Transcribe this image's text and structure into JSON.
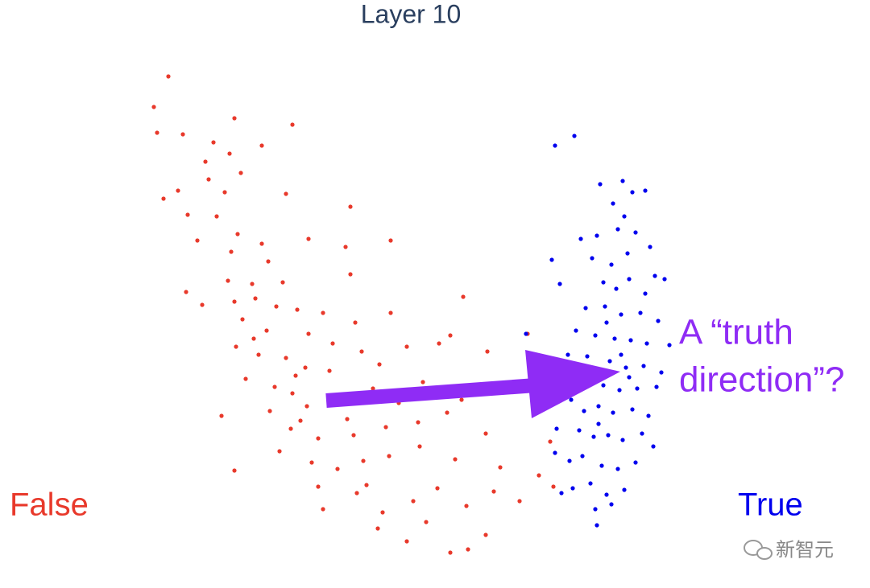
{
  "chart_data": {
    "type": "scatter",
    "title": "Layer 10",
    "annotation": [
      "A “truth",
      "direction”?"
    ],
    "watermark": "新智元",
    "xlim": [
      18,
      84
    ],
    "ylim": [
      3,
      65
    ],
    "series": [
      {
        "name": "False",
        "color": "#e8392b",
        "x": [
          20.9,
          19.1,
          19.5,
          22.7,
          29.1,
          36.3,
          32.5,
          26.5,
          28.5,
          25.5,
          29.9,
          25.9,
          22.1,
          20.3,
          27.9,
          35.5,
          43.5,
          26.9,
          23.3,
          29.5,
          24.5,
          32.5,
          38.3,
          42.9,
          48.5,
          28.7,
          33.3,
          43.5,
          28.3,
          31.3,
          35.1,
          29.1,
          23.1,
          25.1,
          31.7,
          34.3,
          36.9,
          57.5,
          40.1,
          44.1,
          48.5,
          30.1,
          33.1,
          38.3,
          41.3,
          44.9,
          50.5,
          55.9,
          65.5,
          29.3,
          32.1,
          35.5,
          37.9,
          40.9,
          47.1,
          54.5,
          60.5,
          30.5,
          34.1,
          36.3,
          38.1,
          42.5,
          46.3,
          52.5,
          57.3,
          63.5,
          27.5,
          33.5,
          36.1,
          39.5,
          43.9,
          47.9,
          51.9,
          55.5,
          60.3,
          68.3,
          34.7,
          38.7,
          41.9,
          45.1,
          48.3,
          52.1,
          56.5,
          62.1,
          66.9,
          29.1,
          39.5,
          44.3,
          47.5,
          51.3,
          54.3,
          57.9,
          61.3,
          64.5,
          68.7,
          40.1,
          46.9,
          50.5,
          55.9,
          58.1,
          60.3,
          52.9,
          36.7,
          31.5,
          43.1,
          49.5,
          37.3,
          45.5
        ],
        "y": [
          63.6,
          59.8,
          56.6,
          56.4,
          58.4,
          57.6,
          55.0,
          55.4,
          54.0,
          53.0,
          51.6,
          50.8,
          49.4,
          48.4,
          49.2,
          49.0,
          47.4,
          46.2,
          46.4,
          44.0,
          43.2,
          42.8,
          43.4,
          42.4,
          43.2,
          41.8,
          40.6,
          39.0,
          38.2,
          37.8,
          38.0,
          35.6,
          36.8,
          35.2,
          36.0,
          35.0,
          34.6,
          36.2,
          34.2,
          33.0,
          34.2,
          33.4,
          32.0,
          31.6,
          30.4,
          29.4,
          30.0,
          31.4,
          31.6,
          30.0,
          29.0,
          28.6,
          27.4,
          27.0,
          27.8,
          30.4,
          29.4,
          26.0,
          25.0,
          24.2,
          22.6,
          24.0,
          24.8,
          25.6,
          23.4,
          25.2,
          21.4,
          22.0,
          19.8,
          18.6,
          19.0,
          20.0,
          20.6,
          21.8,
          19.2,
          18.2,
          17.0,
          15.6,
          14.8,
          15.8,
          16.4,
          17.6,
          16.0,
          15.0,
          14.0,
          14.6,
          12.6,
          11.8,
          9.4,
          10.8,
          12.4,
          10.2,
          12.0,
          10.8,
          12.6,
          9.8,
          7.4,
          5.8,
          4.4,
          4.8,
          6.6,
          8.2,
          26.4,
          31.0,
          21.0,
          23.0,
          20.8,
          12.8
        ]
      },
      {
        "name": "True",
        "color": "#0000ee",
        "x": [
          68.9,
          71.3,
          74.5,
          77.3,
          78.5,
          80.1,
          76.1,
          77.5,
          72.1,
          74.1,
          76.7,
          78.9,
          80.7,
          68.5,
          73.5,
          75.9,
          77.9,
          81.3,
          82.5,
          69.5,
          74.9,
          76.5,
          78.1,
          80.1,
          72.7,
          75.1,
          77.1,
          79.5,
          81.7,
          65.3,
          71.5,
          73.9,
          76.3,
          78.3,
          80.3,
          83.1,
          70.5,
          72.9,
          75.7,
          77.7,
          79.9,
          82.1,
          69.3,
          73.1,
          74.9,
          76.9,
          79.1,
          81.5,
          70.9,
          72.5,
          74.3,
          76.1,
          78.5,
          80.5,
          69.1,
          71.9,
          73.7,
          75.5,
          77.3,
          79.7,
          81.1,
          68.9,
          70.7,
          72.3,
          74.7,
          76.7,
          78.9,
          71.1,
          73.3,
          75.3,
          77.5,
          69.7,
          73.9,
          74.1,
          75.9,
          72.1,
          75.3,
          77.1,
          74.3,
          78.1
        ],
        "y": [
          55.0,
          56.2,
          50.2,
          50.6,
          49.2,
          49.4,
          47.8,
          46.2,
          43.4,
          43.8,
          44.6,
          44.2,
          42.4,
          40.8,
          41.0,
          40.2,
          41.6,
          38.8,
          38.4,
          37.8,
          38.0,
          37.2,
          38.4,
          36.6,
          34.8,
          35.0,
          34.0,
          34.2,
          33.2,
          31.6,
          32.0,
          31.4,
          31.0,
          30.8,
          30.4,
          30.2,
          29.0,
          28.8,
          28.2,
          27.4,
          27.6,
          26.8,
          26.2,
          26.0,
          25.2,
          24.6,
          24.8,
          25.0,
          23.4,
          22.0,
          22.6,
          21.8,
          22.2,
          21.4,
          19.8,
          19.6,
          18.8,
          19.0,
          18.4,
          19.2,
          17.6,
          16.8,
          15.8,
          16.4,
          15.2,
          14.8,
          15.6,
          12.4,
          13.0,
          11.6,
          12.2,
          11.8,
          9.8,
          7.8,
          10.4,
          25.0,
          33.0,
          29.0,
          20.4,
          26.2
        ]
      }
    ]
  }
}
